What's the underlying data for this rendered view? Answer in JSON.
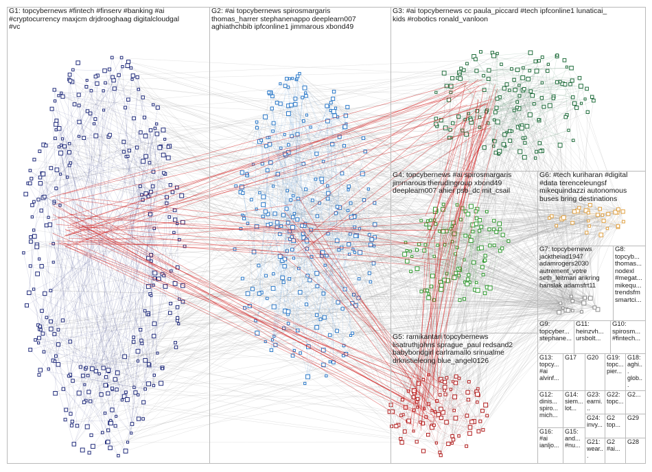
{
  "colors": {
    "G1": "#1f2a7a",
    "G2": "#2a78c8",
    "G3": "#1e6b3a",
    "G4": "#2f9a2f",
    "G5": "#b01c1c",
    "G6": "#e0a040",
    "G7": "#8a8a8a",
    "edge": "#9a9a9a",
    "edge_hot": "#d01818",
    "border": "#b9b9b9"
  },
  "groups": [
    {
      "id": "G1",
      "label": "G1: topcybernews #fintech #finserv #banking #ai\n#cryptocurrency maxjcm drjdrooghaag digitalcloudgal\n#vc"
    },
    {
      "id": "G2",
      "label": "G2: #ai topcybernews spirosmargaris\nthomas_harrer stephanenappo deeplearn007\naghiathchbib ipfconline1 jimmarous xbond49"
    },
    {
      "id": "G3",
      "label": "G3: #ai topcybernews cc paula_piccard #tech ipfconline1 lunaticai_\nkids #robotics ronald_vanloon"
    },
    {
      "id": "G4",
      "label": "G4: topcybernews #ai spirosmargaris\njimmarous therudingroup xbond49\ndeeplearn007 ahier psb_dc mit_csail"
    },
    {
      "id": "G5",
      "label": "G5: ramikantari topcybernews\nlisatruthjohns sprague_paul redsand2\nbabybondgirl carlramallo srinualme\ndrkristieleong blue_angel0126"
    },
    {
      "id": "G6",
      "label": "G6: #tech kuriharan #digital\n#data terenceleungsf\nmikequindazzi autonomous\nbuses bring destinations"
    },
    {
      "id": "G7",
      "label": "G7: topcybernews\njacktheiad1947\nadamrogers2030\nautrement_votre\nseth_leitman arikring\nhanslak adamsfrt11"
    },
    {
      "id": "G8",
      "label": "G8:\ntopcyb...\nthomas...\nnodexl\n#megat...\nmikequ...\ntrendsfm\nsmartci..."
    },
    {
      "id": "G9",
      "label": "G9:\ntopcyber...\nstephane..."
    },
    {
      "id": "G11",
      "label": "G11:\nheinzvh...\nursbolt..."
    },
    {
      "id": "G10",
      "label": "G10:\nspirosm...\n#fintech..."
    },
    {
      "id": "G13",
      "label": "G13:\ntopcy...\n#ai\nalvinf..."
    },
    {
      "id": "G17",
      "label": "G17"
    },
    {
      "id": "G20",
      "label": "G20"
    },
    {
      "id": "G19",
      "label": "G19:\ntopc...\npier..."
    },
    {
      "id": "G18",
      "label": "G18:\naghi...\nglob..."
    },
    {
      "id": "G12",
      "label": "G12:\ndinis...\nspiro...\nmich..."
    },
    {
      "id": "G14",
      "label": "G14:\nsiem...\nlot..."
    },
    {
      "id": "G23",
      "label": "G23:\nearni..."
    },
    {
      "id": "G22",
      "label": "G22:\ntopc..."
    },
    {
      "id": "G26",
      "label": "G2..."
    },
    {
      "id": "G24",
      "label": "G24:\ninvy..."
    },
    {
      "id": "G27",
      "label": "G2\ntop..."
    },
    {
      "id": "G29",
      "label": "G29"
    },
    {
      "id": "G16",
      "label": "G16:\n#ai\nianljo..."
    },
    {
      "id": "G15",
      "label": "G15:\nand...\n#nu..."
    },
    {
      "id": "G21",
      "label": "G21:\nwear..."
    },
    {
      "id": "G25",
      "label": "G2\n#ai..."
    },
    {
      "id": "G28",
      "label": "G28"
    }
  ]
}
